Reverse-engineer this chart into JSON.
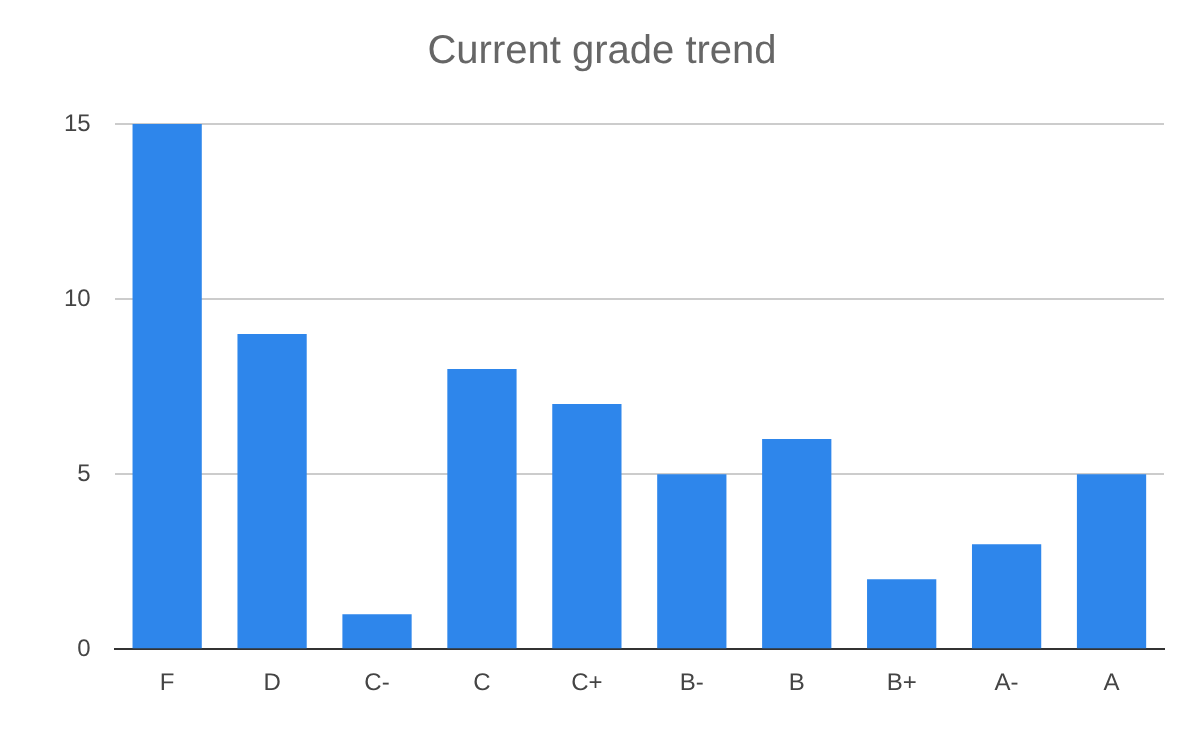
{
  "chart_data": {
    "type": "bar",
    "title": "Current grade trend",
    "categories": [
      "F",
      "D",
      "C-",
      "C",
      "C+",
      "B-",
      "B",
      "B+",
      "A-",
      "A"
    ],
    "values": [
      15,
      9,
      1,
      8,
      7,
      5,
      6,
      2,
      3,
      5
    ],
    "color": "#2e86eb",
    "ylim": [
      0,
      15
    ],
    "yticks": [
      0,
      5,
      10,
      15
    ],
    "grid": "y",
    "legend": false
  }
}
